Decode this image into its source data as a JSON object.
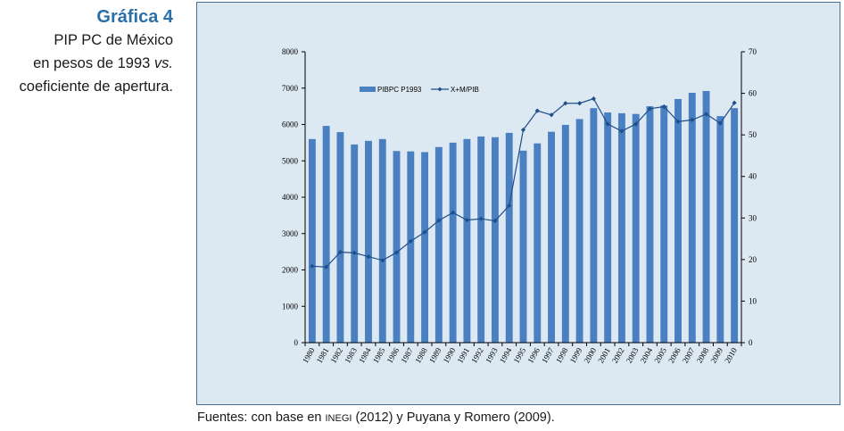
{
  "caption": {
    "title": "Gráfica 4",
    "line1": "PIP PC de México",
    "line2": "en pesos de 1993 vs.",
    "line3": "coeficiente de apertura."
  },
  "source": {
    "prefix": "Fuentes: con base en ",
    "org": "INEGI",
    "suffix": " (2012) y Puyana y Romero (2009)."
  },
  "colors": {
    "bar": "#4a7fc1",
    "line": "#1f4f8a",
    "panel": "#dce8f2"
  },
  "chart_data": {
    "type": "bar+line",
    "categories": [
      "1980",
      "1981",
      "1982",
      "1983",
      "1984",
      "1985",
      "1986",
      "1987",
      "1988",
      "1989",
      "1990",
      "1991",
      "1992",
      "1993",
      "1994",
      "1995",
      "1996",
      "1997",
      "1998",
      "1999",
      "2000",
      "2001",
      "2002",
      "2003",
      "2004",
      "2005",
      "2006",
      "2007",
      "2008",
      "2009",
      "2010"
    ],
    "series": [
      {
        "name": "PIBPC P1993",
        "type": "bar",
        "axis": "left",
        "values": [
          5600,
          5960,
          5790,
          5450,
          5550,
          5600,
          5270,
          5260,
          5240,
          5380,
          5500,
          5600,
          5670,
          5650,
          5770,
          5280,
          5480,
          5800,
          5990,
          6150,
          6450,
          6330,
          6310,
          6290,
          6500,
          6520,
          6700,
          6870,
          6920,
          6230,
          6450
        ]
      },
      {
        "name": "X+M/PIB",
        "type": "line",
        "axis": "right",
        "values": [
          18.4,
          18.2,
          21.8,
          21.6,
          20.7,
          19.8,
          21.7,
          24.4,
          26.6,
          29.4,
          31.3,
          29.5,
          29.8,
          29.3,
          33.0,
          51.2,
          55.8,
          54.8,
          57.6,
          57.6,
          58.7,
          52.6,
          50.9,
          52.6,
          56.3,
          56.8,
          53.2,
          53.6,
          55.0,
          52.8,
          57.7
        ]
      }
    ],
    "ylim_left": [
      0,
      8000
    ],
    "ylim_right": [
      0,
      70
    ],
    "yticks_left": [
      "0",
      "1000",
      "2000",
      "3000",
      "4000",
      "5000",
      "6000",
      "7000",
      "8000"
    ],
    "yticks_right": [
      "0",
      "10",
      "20",
      "30",
      "40",
      "50",
      "60",
      "70"
    ],
    "legend": [
      "PIBPC P1993",
      "X+M/PIB"
    ],
    "legend_position": "top-left"
  }
}
